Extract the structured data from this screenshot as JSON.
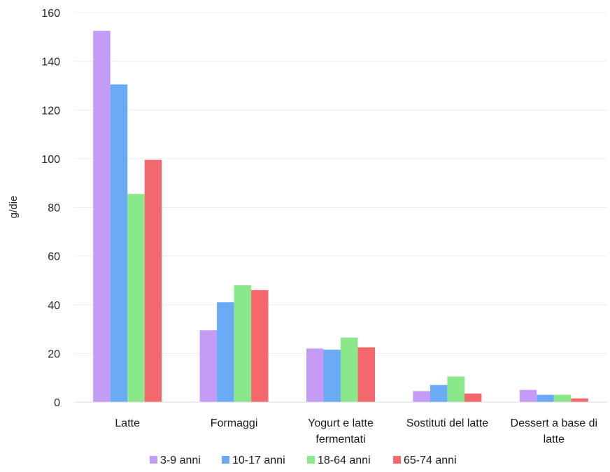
{
  "chart_data": {
    "type": "bar",
    "title": "",
    "xlabel": "",
    "ylabel": "g/die",
    "ylim": [
      0,
      160
    ],
    "yticks": [
      0,
      20,
      40,
      60,
      80,
      100,
      120,
      140,
      160
    ],
    "grid": true,
    "legend_position": "bottom",
    "categories": [
      [
        "Latte"
      ],
      [
        "Formaggi"
      ],
      [
        "Yogurt e latte",
        "fermentati"
      ],
      [
        "Sostituti del latte"
      ],
      [
        "Dessert a base di",
        "latte"
      ]
    ],
    "series": [
      {
        "name": "3-9 anni",
        "color": "#c49bf5",
        "values": [
          152.5,
          29.5,
          22,
          4.5,
          5
        ]
      },
      {
        "name": "10-17 anni",
        "color": "#6aaaf4",
        "values": [
          130.5,
          41,
          21.5,
          7,
          3
        ]
      },
      {
        "name": "18-64 anni",
        "color": "#8ae88a",
        "values": [
          85.5,
          48,
          26.5,
          10.5,
          3
        ]
      },
      {
        "name": "65-74 anni",
        "color": "#f2686d",
        "values": [
          99.5,
          46,
          22.5,
          3.5,
          1.5
        ]
      }
    ]
  }
}
